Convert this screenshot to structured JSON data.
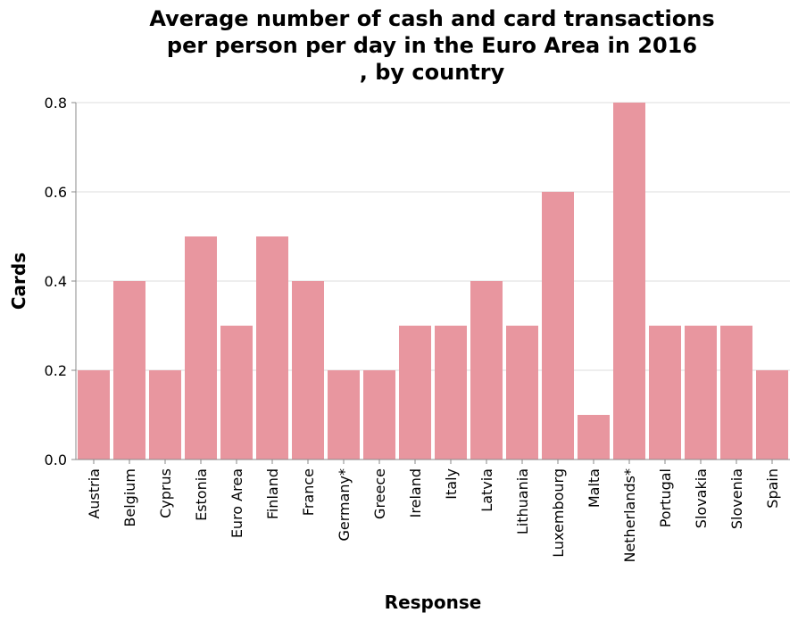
{
  "chart_data": {
    "type": "bar",
    "title": [
      "Average number of cash and card transactions",
      "per person per day in the Euro Area in 2016",
      ", by country"
    ],
    "xlabel": "Response",
    "ylabel": "Cards",
    "ylim": [
      0,
      0.8
    ],
    "yticks": [
      "0.0",
      "0.2",
      "0.4",
      "0.6",
      "0.8"
    ],
    "grid": true,
    "categories": [
      "Austria",
      "Belgium",
      "Cyprus",
      "Estonia",
      "Euro Area",
      "Finland",
      "France",
      "Germany*",
      "Greece",
      "Ireland",
      "Italy",
      "Latvia",
      "Lithuania",
      "Luxembourg",
      "Malta",
      "Netherlands*",
      "Portugal",
      "Slovakia",
      "Slovenia",
      "Spain"
    ],
    "values": [
      0.2,
      0.4,
      0.2,
      0.5,
      0.3,
      0.5,
      0.4,
      0.2,
      0.2,
      0.3,
      0.3,
      0.4,
      0.3,
      0.6,
      0.1,
      0.8,
      0.3,
      0.3,
      0.3,
      0.2
    ],
    "bar_color": "#e8969f"
  }
}
